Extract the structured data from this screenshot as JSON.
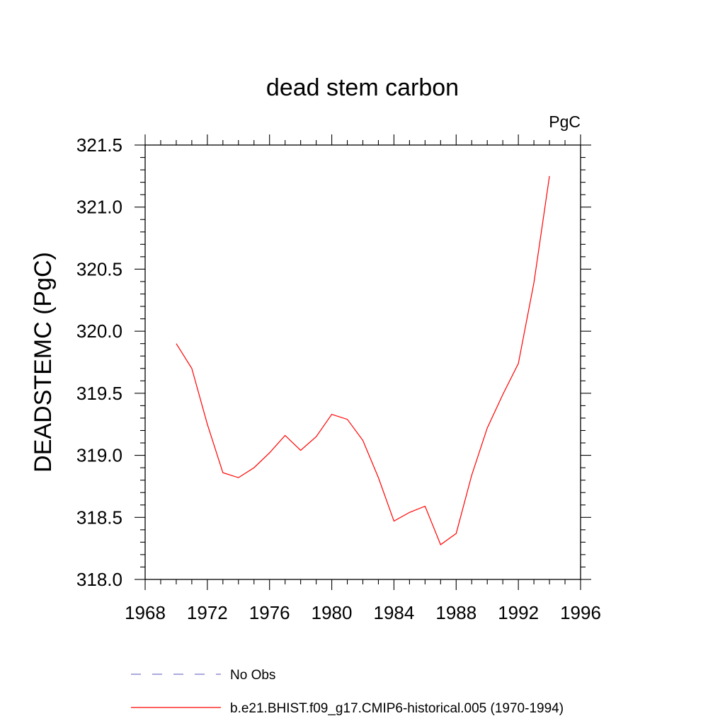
{
  "chart_data": {
    "type": "line",
    "title": "dead stem carbon",
    "units_label": "PgC",
    "xlabel": "",
    "ylabel": "DEADSTEMC  (PgC)",
    "xlim": [
      1968,
      1996
    ],
    "ylim": [
      318.0,
      321.5
    ],
    "xticks": [
      1968,
      1972,
      1976,
      1980,
      1984,
      1988,
      1992,
      1996
    ],
    "yticks": [
      318.0,
      318.5,
      319.0,
      319.5,
      320.0,
      320.5,
      321.0,
      321.5
    ],
    "ytick_labels": [
      "318.0",
      "318.5",
      "319.0",
      "319.5",
      "320.0",
      "320.5",
      "321.0",
      "321.5"
    ],
    "grid": false,
    "legend_position": "bottom",
    "series": [
      {
        "name": "No Obs",
        "color": "#7b76c9",
        "dash": "dashed",
        "x": [],
        "values": []
      },
      {
        "name": "b.e21.BHIST.f09_g17.CMIP6-historical.005 (1970-1994)",
        "color": "#ff0000",
        "dash": "solid",
        "x": [
          1970,
          1971,
          1972,
          1973,
          1974,
          1975,
          1976,
          1977,
          1978,
          1979,
          1980,
          1981,
          1982,
          1983,
          1984,
          1985,
          1986,
          1987,
          1988,
          1989,
          1990,
          1991,
          1992,
          1993,
          1994
        ],
        "values": [
          319.9,
          319.7,
          319.25,
          318.86,
          318.82,
          318.9,
          319.02,
          319.16,
          319.04,
          319.15,
          319.33,
          319.29,
          319.12,
          318.82,
          318.47,
          318.54,
          318.59,
          318.28,
          318.37,
          318.84,
          319.22,
          319.49,
          319.74,
          320.39,
          321.25
        ]
      }
    ]
  }
}
